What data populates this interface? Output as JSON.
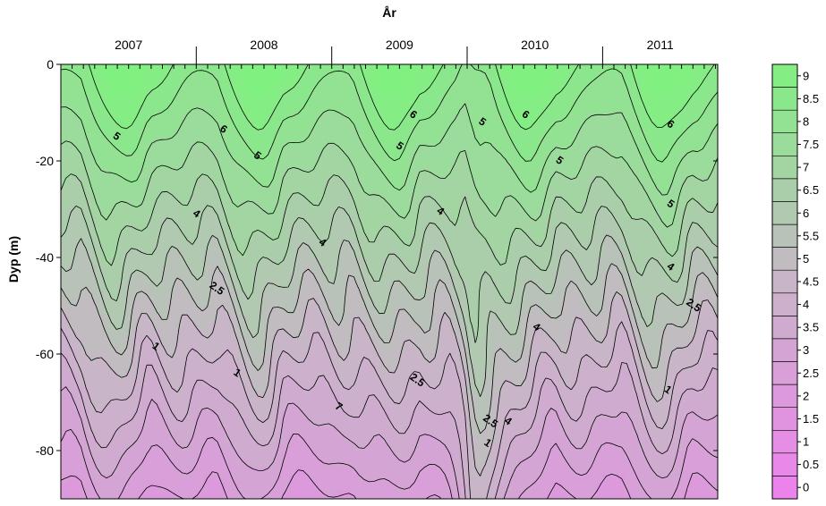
{
  "chart_data": {
    "type": "heatmap",
    "subtype": "contour",
    "xlabel": "År",
    "ylabel": "Dyp (m)",
    "x_axis_position": "top",
    "year_labels": [
      "2007",
      "2008",
      "2009",
      "2010",
      "2011"
    ],
    "y_ticks": [
      0,
      -20,
      -40,
      -60,
      -80
    ],
    "y_tick_labels": [
      "0",
      "-20",
      "-40",
      "-60",
      "-80"
    ],
    "ylim": [
      -90,
      0
    ],
    "xlim": [
      2006.75,
      2011.6
    ],
    "year_boundaries": [
      2007.75,
      2008.75,
      2009.75,
      2010.75
    ],
    "minor_ticks_per_year": 12,
    "contour_levels": [
      0,
      0.5,
      1,
      1.5,
      2,
      2.5,
      3,
      3.5,
      4,
      4.5,
      5,
      5.5,
      6,
      6.5,
      7,
      7.5,
      8,
      8.5,
      9
    ],
    "colorbar_labels": [
      "9",
      "8.5",
      "8",
      "7.5",
      "7",
      "6.5",
      "6",
      "5.5",
      "5",
      "4.5",
      "4",
      "3.5",
      "3",
      "2.5",
      "2",
      "1.5",
      "1",
      "0.5",
      "0"
    ],
    "colorbar_range": [
      0,
      9.5
    ],
    "color_low": "#ee80ee",
    "color_mid": "#c8b6c8",
    "color_high": "#80f080",
    "contour_color": "#000000",
    "contour_labels": [
      {
        "text": "5",
        "x": 2007.16,
        "y": -15
      },
      {
        "text": "6",
        "x": 2007.95,
        "y": -13.5
      },
      {
        "text": "5",
        "x": 2008.2,
        "y": -19
      },
      {
        "text": "4",
        "x": 2007.75,
        "y": -31
      },
      {
        "text": "4",
        "x": 2008.68,
        "y": -37
      },
      {
        "text": "2.5",
        "x": 2007.9,
        "y": -46.5
      },
      {
        "text": "1",
        "x": 2007.45,
        "y": -58.5
      },
      {
        "text": "1",
        "x": 2008.05,
        "y": -64
      },
      {
        "text": "6",
        "x": 2009.35,
        "y": -10.5
      },
      {
        "text": "5",
        "x": 2009.25,
        "y": -17
      },
      {
        "text": "7",
        "x": 2008.8,
        "y": -71
      },
      {
        "text": "4",
        "x": 2009.55,
        "y": -30.5
      },
      {
        "text": "2.5",
        "x": 2009.38,
        "y": -65.5
      },
      {
        "text": "5",
        "x": 2009.86,
        "y": -12
      },
      {
        "text": "6",
        "x": 2010.18,
        "y": -10.5
      },
      {
        "text": "5",
        "x": 2010.43,
        "y": -20
      },
      {
        "text": "4",
        "x": 2010.26,
        "y": -54.5
      },
      {
        "text": "2.5",
        "x": 2009.92,
        "y": -74
      },
      {
        "text": "4",
        "x": 2010.05,
        "y": -74
      },
      {
        "text": "1",
        "x": 2009.9,
        "y": -78.5
      },
      {
        "text": "6",
        "x": 2011.25,
        "y": -12.5
      },
      {
        "text": "5",
        "x": 2011.25,
        "y": -29
      },
      {
        "text": "4",
        "x": 2011.25,
        "y": -42
      },
      {
        "text": "2.5",
        "x": 2011.42,
        "y": -50
      },
      {
        "text": "1",
        "x": 2011.23,
        "y": -67.5
      }
    ]
  }
}
